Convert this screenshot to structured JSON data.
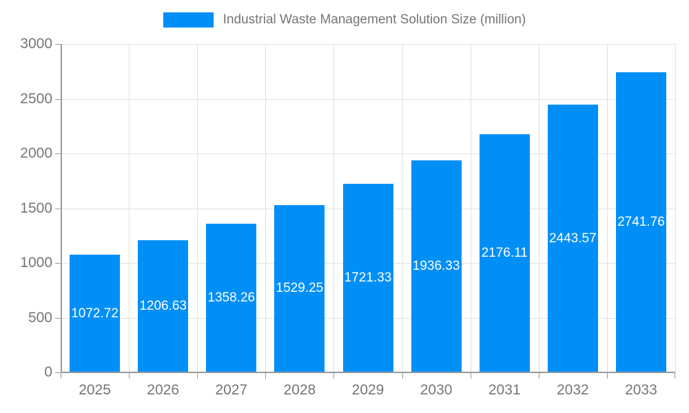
{
  "legend": {
    "label": "Industrial Waste Management Solution Size (million)"
  },
  "colors": {
    "bar": "#008FF7",
    "bar_label": "#ffffff",
    "axis_line": "#999999",
    "grid_line": "#e0e0e0",
    "tick_label": "#757575"
  },
  "chart_data": {
    "type": "bar",
    "title": "Industrial Waste Management Solution Size (million)",
    "categories": [
      "2025",
      "2026",
      "2027",
      "2028",
      "2029",
      "2030",
      "2031",
      "2032",
      "2033"
    ],
    "values": [
      1072.72,
      1206.63,
      1358.26,
      1529.25,
      1721.33,
      1936.33,
      2176.11,
      2443.57,
      2741.76
    ],
    "value_labels": [
      "1072.72",
      "1206.63",
      "1358.26",
      "1529.25",
      "1721.33",
      "1936.33",
      "2176.11",
      "2443.57",
      "2741.76"
    ],
    "xlabel": "",
    "ylabel": "",
    "ylim": [
      0,
      3000
    ],
    "ytick_step": 500,
    "ytick_labels": [
      "0",
      "500",
      "1000",
      "1500",
      "2000",
      "2500",
      "3000"
    ],
    "grid": true,
    "legend_position": "top-center",
    "bar_label_position": "inside-center"
  }
}
